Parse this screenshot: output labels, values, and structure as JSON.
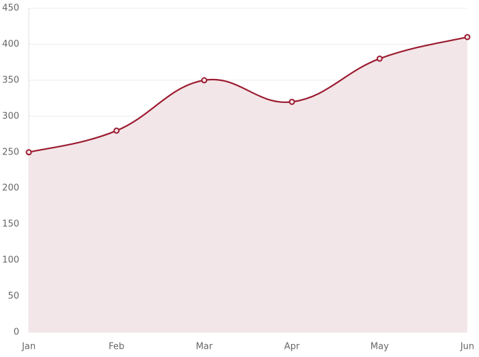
{
  "chart_data": {
    "type": "area",
    "categories": [
      "Jan",
      "Feb",
      "Mar",
      "Apr",
      "May",
      "Jun"
    ],
    "values": [
      250,
      280,
      350,
      320,
      380,
      410
    ],
    "color": "#9b1b30",
    "fill": "#f3e6e8",
    "ylim": [
      0,
      450
    ],
    "yticks": [
      0,
      50,
      100,
      150,
      200,
      250,
      300,
      350,
      400,
      450
    ],
    "grid": true
  }
}
